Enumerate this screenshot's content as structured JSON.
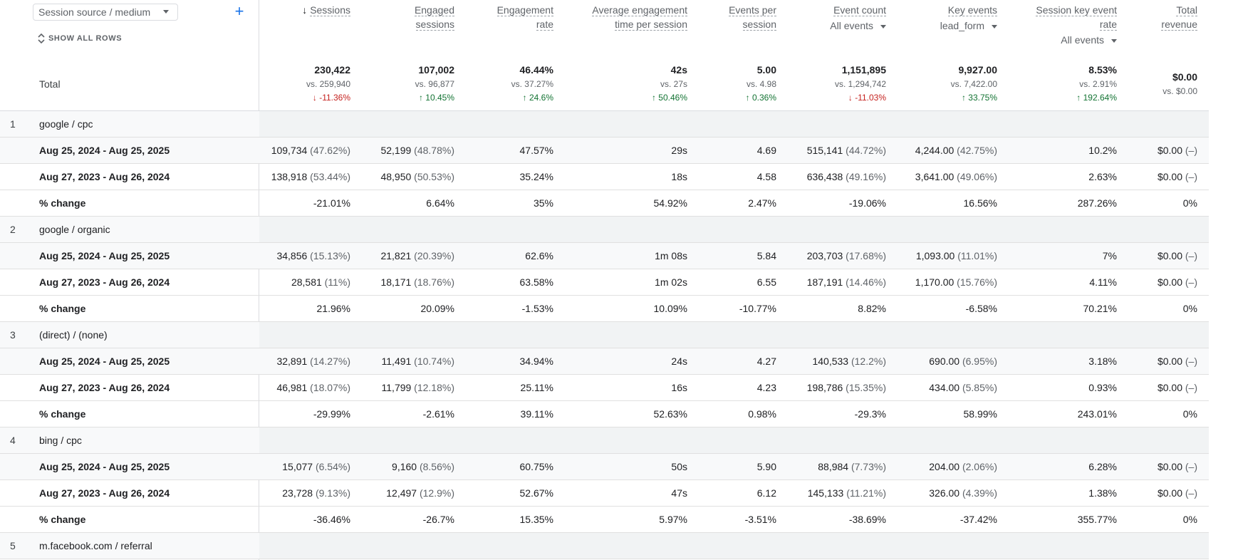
{
  "dimension": {
    "label": "Session source / medium"
  },
  "show_all_rows": "SHOW ALL ROWS",
  "columns": [
    {
      "key": "sessions",
      "title": "Sessions",
      "sorted": true
    },
    {
      "key": "engaged",
      "title": "Engaged\nsessions"
    },
    {
      "key": "eng_rate",
      "title": "Engagement\nrate"
    },
    {
      "key": "avg_time",
      "title": "Average engagement\ntime per session"
    },
    {
      "key": "events_per",
      "title": "Events per\nsession"
    },
    {
      "key": "event_count",
      "title": "Event count",
      "sub": "All events"
    },
    {
      "key": "key_events",
      "title": "Key events",
      "sub": "lead_form"
    },
    {
      "key": "skr",
      "title": "Session key event\nrate",
      "sub": "All events"
    },
    {
      "key": "revenue",
      "title": "Total\nrevenue"
    }
  ],
  "totals": {
    "label": "Total",
    "cells": [
      {
        "v": "230,422",
        "vs": "vs. 259,940",
        "ch": "-11.36%",
        "dir": "down"
      },
      {
        "v": "107,002",
        "vs": "vs. 96,877",
        "ch": "10.45%",
        "dir": "up"
      },
      {
        "v": "46.44%",
        "vs": "vs. 37.27%",
        "ch": "24.6%",
        "dir": "up"
      },
      {
        "v": "42s",
        "vs": "vs. 27s",
        "ch": "50.46%",
        "dir": "up"
      },
      {
        "v": "5.00",
        "vs": "vs. 4.98",
        "ch": "0.36%",
        "dir": "up"
      },
      {
        "v": "1,151,895",
        "vs": "vs. 1,294,742",
        "ch": "-11.03%",
        "dir": "down"
      },
      {
        "v": "9,927.00",
        "vs": "vs. 7,422.00",
        "ch": "33.75%",
        "dir": "up"
      },
      {
        "v": "8.53%",
        "vs": "vs. 2.91%",
        "ch": "192.64%",
        "dir": "up"
      },
      {
        "v": "$0.00",
        "vs": "vs. $0.00",
        "ch": "",
        "dir": ""
      }
    ]
  },
  "groups": [
    {
      "idx": "1",
      "name": "google / cpc",
      "rows": [
        {
          "label": "Aug 25, 2024 - Aug 25, 2025",
          "cells": [
            [
              "109,734",
              "(47.62%)"
            ],
            [
              "52,199",
              "(48.78%)"
            ],
            [
              "47.57%",
              ""
            ],
            [
              "29s",
              ""
            ],
            [
              "4.69",
              ""
            ],
            [
              "515,141",
              "(44.72%)"
            ],
            [
              "4,244.00",
              "(42.75%)"
            ],
            [
              "10.2%",
              ""
            ],
            [
              "$0.00",
              "(–)"
            ]
          ]
        },
        {
          "label": "Aug 27, 2023 - Aug 26, 2024",
          "cells": [
            [
              "138,918",
              "(53.44%)"
            ],
            [
              "48,950",
              "(50.53%)"
            ],
            [
              "35.24%",
              ""
            ],
            [
              "18s",
              ""
            ],
            [
              "4.58",
              ""
            ],
            [
              "636,438",
              "(49.16%)"
            ],
            [
              "3,641.00",
              "(49.06%)"
            ],
            [
              "2.63%",
              ""
            ],
            [
              "$0.00",
              "(–)"
            ]
          ]
        },
        {
          "label": "% change",
          "cells": [
            [
              "-21.01%",
              ""
            ],
            [
              "6.64%",
              ""
            ],
            [
              "35%",
              ""
            ],
            [
              "54.92%",
              ""
            ],
            [
              "2.47%",
              ""
            ],
            [
              "-19.06%",
              ""
            ],
            [
              "16.56%",
              ""
            ],
            [
              "287.26%",
              ""
            ],
            [
              "0%",
              ""
            ]
          ]
        }
      ]
    },
    {
      "idx": "2",
      "name": "google / organic",
      "rows": [
        {
          "label": "Aug 25, 2024 - Aug 25, 2025",
          "cells": [
            [
              "34,856",
              "(15.13%)"
            ],
            [
              "21,821",
              "(20.39%)"
            ],
            [
              "62.6%",
              ""
            ],
            [
              "1m 08s",
              ""
            ],
            [
              "5.84",
              ""
            ],
            [
              "203,703",
              "(17.68%)"
            ],
            [
              "1,093.00",
              "(11.01%)"
            ],
            [
              "7%",
              ""
            ],
            [
              "$0.00",
              "(–)"
            ]
          ]
        },
        {
          "label": "Aug 27, 2023 - Aug 26, 2024",
          "cells": [
            [
              "28,581",
              "(11%)"
            ],
            [
              "18,171",
              "(18.76%)"
            ],
            [
              "63.58%",
              ""
            ],
            [
              "1m 02s",
              ""
            ],
            [
              "6.55",
              ""
            ],
            [
              "187,191",
              "(14.46%)"
            ],
            [
              "1,170.00",
              "(15.76%)"
            ],
            [
              "4.11%",
              ""
            ],
            [
              "$0.00",
              "(–)"
            ]
          ]
        },
        {
          "label": "% change",
          "cells": [
            [
              "21.96%",
              ""
            ],
            [
              "20.09%",
              ""
            ],
            [
              "-1.53%",
              ""
            ],
            [
              "10.09%",
              ""
            ],
            [
              "-10.77%",
              ""
            ],
            [
              "8.82%",
              ""
            ],
            [
              "-6.58%",
              ""
            ],
            [
              "70.21%",
              ""
            ],
            [
              "0%",
              ""
            ]
          ]
        }
      ]
    },
    {
      "idx": "3",
      "name": "(direct) / (none)",
      "rows": [
        {
          "label": "Aug 25, 2024 - Aug 25, 2025",
          "cells": [
            [
              "32,891",
              "(14.27%)"
            ],
            [
              "11,491",
              "(10.74%)"
            ],
            [
              "34.94%",
              ""
            ],
            [
              "24s",
              ""
            ],
            [
              "4.27",
              ""
            ],
            [
              "140,533",
              "(12.2%)"
            ],
            [
              "690.00",
              "(6.95%)"
            ],
            [
              "3.18%",
              ""
            ],
            [
              "$0.00",
              "(–)"
            ]
          ]
        },
        {
          "label": "Aug 27, 2023 - Aug 26, 2024",
          "cells": [
            [
              "46,981",
              "(18.07%)"
            ],
            [
              "11,799",
              "(12.18%)"
            ],
            [
              "25.11%",
              ""
            ],
            [
              "16s",
              ""
            ],
            [
              "4.23",
              ""
            ],
            [
              "198,786",
              "(15.35%)"
            ],
            [
              "434.00",
              "(5.85%)"
            ],
            [
              "0.93%",
              ""
            ],
            [
              "$0.00",
              "(–)"
            ]
          ]
        },
        {
          "label": "% change",
          "cells": [
            [
              "-29.99%",
              ""
            ],
            [
              "-2.61%",
              ""
            ],
            [
              "39.11%",
              ""
            ],
            [
              "52.63%",
              ""
            ],
            [
              "0.98%",
              ""
            ],
            [
              "-29.3%",
              ""
            ],
            [
              "58.99%",
              ""
            ],
            [
              "243.01%",
              ""
            ],
            [
              "0%",
              ""
            ]
          ]
        }
      ]
    },
    {
      "idx": "4",
      "name": "bing / cpc",
      "rows": [
        {
          "label": "Aug 25, 2024 - Aug 25, 2025",
          "cells": [
            [
              "15,077",
              "(6.54%)"
            ],
            [
              "9,160",
              "(8.56%)"
            ],
            [
              "60.75%",
              ""
            ],
            [
              "50s",
              ""
            ],
            [
              "5.90",
              ""
            ],
            [
              "88,984",
              "(7.73%)"
            ],
            [
              "204.00",
              "(2.06%)"
            ],
            [
              "6.28%",
              ""
            ],
            [
              "$0.00",
              "(–)"
            ]
          ]
        },
        {
          "label": "Aug 27, 2023 - Aug 26, 2024",
          "cells": [
            [
              "23,728",
              "(9.13%)"
            ],
            [
              "12,497",
              "(12.9%)"
            ],
            [
              "52.67%",
              ""
            ],
            [
              "47s",
              ""
            ],
            [
              "6.12",
              ""
            ],
            [
              "145,133",
              "(11.21%)"
            ],
            [
              "326.00",
              "(4.39%)"
            ],
            [
              "1.38%",
              ""
            ],
            [
              "$0.00",
              "(–)"
            ]
          ]
        },
        {
          "label": "% change",
          "cells": [
            [
              "-36.46%",
              ""
            ],
            [
              "-26.7%",
              ""
            ],
            [
              "15.35%",
              ""
            ],
            [
              "5.97%",
              ""
            ],
            [
              "-3.51%",
              ""
            ],
            [
              "-38.69%",
              ""
            ],
            [
              "-37.42%",
              ""
            ],
            [
              "355.77%",
              ""
            ],
            [
              "0%",
              ""
            ]
          ]
        }
      ]
    },
    {
      "idx": "5",
      "name": "m.facebook.com / referral",
      "rows": []
    }
  ]
}
